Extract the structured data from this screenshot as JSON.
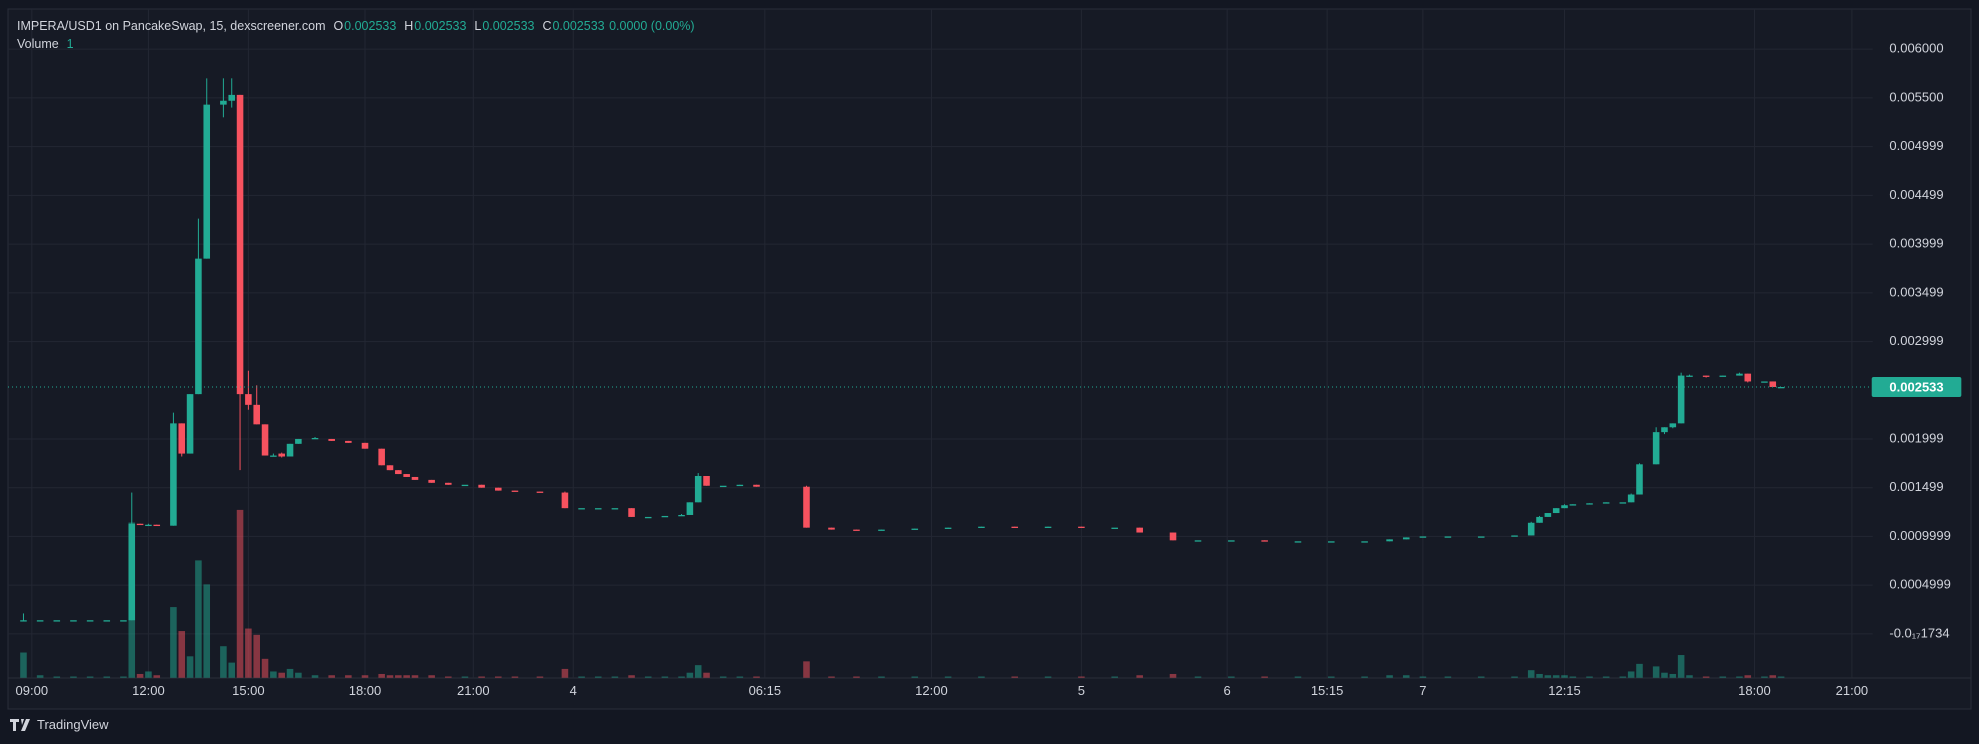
{
  "chart_data": {
    "type": "candlestick",
    "legend": {
      "symbol": "IMPERA/USD1 on PancakeSwap, 15, dexscreener.com",
      "ohlc": [
        {
          "label": "O",
          "value": 0.002533
        },
        {
          "label": "H",
          "value": 0.002533
        },
        {
          "label": "L",
          "value": 0.002533
        },
        {
          "label": "C",
          "value": 0.002533
        }
      ],
      "change": "0.0000 (0.00%)",
      "volume_label": "Volume",
      "volume_value": 1
    },
    "up_color": "#22ab94",
    "down_color": "#f7525f",
    "grid": true,
    "last_price": 0.002533,
    "ylim": [
      -0.00045,
      0.0064
    ],
    "yticks": [
      {
        "value": 0.006,
        "label": "0.006000"
      },
      {
        "value": 0.0055,
        "label": "0.005500"
      },
      {
        "value": 0.004999,
        "label": "0.004999"
      },
      {
        "value": 0.004499,
        "label": "0.004499"
      },
      {
        "value": 0.003999,
        "label": "0.003999"
      },
      {
        "value": 0.003499,
        "label": "0.003499"
      },
      {
        "value": 0.002999,
        "label": "0.002999"
      },
      {
        "value": 0.001999,
        "label": "0.001999"
      },
      {
        "value": 0.001499,
        "label": "0.001499"
      },
      {
        "value": 0.0009999,
        "label": "0.0009999"
      },
      {
        "value": 0.0004999,
        "label": "0.0004999"
      },
      {
        "value": -1.734e-18,
        "label": "-0.0₁₇1734"
      }
    ],
    "xlim": [
      0,
      223
    ],
    "xticks": [
      {
        "value": 2,
        "label": "09:00"
      },
      {
        "value": 16,
        "label": "12:00"
      },
      {
        "value": 28,
        "label": "15:00"
      },
      {
        "value": 42,
        "label": "18:00"
      },
      {
        "value": 55,
        "label": "21:00"
      },
      {
        "value": 67,
        "label": "4"
      },
      {
        "value": 90,
        "label": "06:15"
      },
      {
        "value": 110,
        "label": "12:00"
      },
      {
        "value": 128,
        "label": "5"
      },
      {
        "value": 145.5,
        "label": "6"
      },
      {
        "value": 157.5,
        "label": "15:15"
      },
      {
        "value": 169,
        "label": "7"
      },
      {
        "value": 186,
        "label": "12:15"
      },
      {
        "value": 208.8,
        "label": "18:00"
      },
      {
        "value": 220.5,
        "label": "21:00"
      }
    ],
    "vlim": [
      0,
      140
    ],
    "candles": [
      {
        "x": 1,
        "open": 0.00014,
        "high": 0.00021,
        "low": 0.00013,
        "close": 0.00014,
        "volume": 20
      },
      {
        "x": 3,
        "open": 0.00014,
        "high": 0.00014,
        "low": 0.00014,
        "close": 0.00014,
        "volume": 2
      },
      {
        "x": 5,
        "open": 0.00014,
        "high": 0.00014,
        "low": 0.00014,
        "close": 0.00014,
        "volume": 1
      },
      {
        "x": 7,
        "open": 0.00014,
        "high": 0.00014,
        "low": 0.00014,
        "close": 0.00014,
        "volume": 1
      },
      {
        "x": 9,
        "open": 0.00014,
        "high": 0.00014,
        "low": 0.00014,
        "close": 0.00014,
        "volume": 1
      },
      {
        "x": 11,
        "open": 0.00014,
        "high": 0.00014,
        "low": 0.00014,
        "close": 0.00014,
        "volume": 1
      },
      {
        "x": 13,
        "open": 0.00014,
        "high": 0.00014,
        "low": 0.00014,
        "close": 0.00014,
        "volume": 1
      },
      {
        "x": 14,
        "open": 0.00014,
        "high": 0.00145,
        "low": 0.00014,
        "close": 0.00113,
        "volume": 123
      },
      {
        "x": 15,
        "open": 0.00113,
        "high": 0.00113,
        "low": 0.00112,
        "close": 0.00112,
        "volume": 3
      },
      {
        "x": 16,
        "open": 0.00112,
        "high": 0.00113,
        "low": 0.00111,
        "close": 0.00112,
        "volume": 5
      },
      {
        "x": 17,
        "open": 0.00112,
        "high": 0.00112,
        "low": 0.00111,
        "close": 0.00111,
        "volume": 2
      },
      {
        "x": 19,
        "open": 0.00111,
        "high": 0.00227,
        "low": 0.00111,
        "close": 0.00216,
        "volume": 56
      },
      {
        "x": 20,
        "open": 0.00216,
        "high": 0.00216,
        "low": 0.00182,
        "close": 0.00185,
        "volume": 37
      },
      {
        "x": 21,
        "open": 0.00185,
        "high": 0.00246,
        "low": 0.00185,
        "close": 0.00246,
        "volume": 17
      },
      {
        "x": 22,
        "open": 0.00246,
        "high": 0.00426,
        "low": 0.00246,
        "close": 0.00385,
        "volume": 93
      },
      {
        "x": 23,
        "open": 0.00385,
        "high": 0.0057,
        "low": 0.00385,
        "close": 0.00543,
        "volume": 74
      },
      {
        "x": 25,
        "open": 0.00543,
        "high": 0.0057,
        "low": 0.0053,
        "close": 0.00547,
        "volume": 25
      },
      {
        "x": 26,
        "open": 0.00547,
        "high": 0.0057,
        "low": 0.0054,
        "close": 0.00553,
        "volume": 12
      },
      {
        "x": 27,
        "open": 0.00553,
        "high": 0.00553,
        "low": 0.00168,
        "close": 0.00246,
        "volume": 133
      },
      {
        "x": 28,
        "open": 0.00246,
        "high": 0.0027,
        "low": 0.0023,
        "close": 0.00235,
        "volume": 39
      },
      {
        "x": 29,
        "open": 0.00235,
        "high": 0.00255,
        "low": 0.00215,
        "close": 0.00215,
        "volume": 34
      },
      {
        "x": 30,
        "open": 0.00215,
        "high": 0.00215,
        "low": 0.00183,
        "close": 0.00183,
        "volume": 15
      },
      {
        "x": 31,
        "open": 0.00183,
        "high": 0.00185,
        "low": 0.00182,
        "close": 0.00183,
        "volume": 5
      },
      {
        "x": 32,
        "open": 0.00185,
        "high": 0.00186,
        "low": 0.00181,
        "close": 0.00182,
        "volume": 4
      },
      {
        "x": 33,
        "open": 0.00182,
        "high": 0.00195,
        "low": 0.00182,
        "close": 0.00195,
        "volume": 7
      },
      {
        "x": 34,
        "open": 0.00195,
        "high": 0.002,
        "low": 0.00195,
        "close": 0.002,
        "volume": 4
      },
      {
        "x": 36,
        "open": 0.00201,
        "high": 0.00202,
        "low": 0.002,
        "close": 0.00201,
        "volume": 2
      },
      {
        "x": 38,
        "open": 0.002,
        "high": 0.002,
        "low": 0.00198,
        "close": 0.00198,
        "volume": 2
      },
      {
        "x": 40,
        "open": 0.00198,
        "high": 0.00198,
        "low": 0.00196,
        "close": 0.00196,
        "volume": 2
      },
      {
        "x": 42,
        "open": 0.00196,
        "high": 0.00196,
        "low": 0.0019,
        "close": 0.0019,
        "volume": 2
      },
      {
        "x": 44,
        "open": 0.0019,
        "high": 0.0019,
        "low": 0.00173,
        "close": 0.00173,
        "volume": 3
      },
      {
        "x": 45,
        "open": 0.00173,
        "high": 0.00173,
        "low": 0.00168,
        "close": 0.00168,
        "volume": 2
      },
      {
        "x": 46,
        "open": 0.00168,
        "high": 0.00168,
        "low": 0.00164,
        "close": 0.00164,
        "volume": 2
      },
      {
        "x": 47,
        "open": 0.00164,
        "high": 0.00164,
        "low": 0.00161,
        "close": 0.00161,
        "volume": 2
      },
      {
        "x": 48,
        "open": 0.00161,
        "high": 0.00161,
        "low": 0.00158,
        "close": 0.00158,
        "volume": 2
      },
      {
        "x": 50,
        "open": 0.00158,
        "high": 0.00158,
        "low": 0.00155,
        "close": 0.00155,
        "volume": 2
      },
      {
        "x": 52,
        "open": 0.00155,
        "high": 0.00155,
        "low": 0.00153,
        "close": 0.00153,
        "volume": 1
      },
      {
        "x": 54,
        "open": 0.00153,
        "high": 0.00153,
        "low": 0.00153,
        "close": 0.00153,
        "volume": 1
      },
      {
        "x": 56,
        "open": 0.00153,
        "high": 0.00153,
        "low": 0.0015,
        "close": 0.0015,
        "volume": 1
      },
      {
        "x": 58,
        "open": 0.0015,
        "high": 0.0015,
        "low": 0.00147,
        "close": 0.00147,
        "volume": 1
      },
      {
        "x": 60,
        "open": 0.00147,
        "high": 0.00147,
        "low": 0.00146,
        "close": 0.00146,
        "volume": 1
      },
      {
        "x": 63,
        "open": 0.00146,
        "high": 0.00146,
        "low": 0.00145,
        "close": 0.00145,
        "volume": 1
      },
      {
        "x": 66,
        "open": 0.00145,
        "high": 0.00146,
        "low": 0.00129,
        "close": 0.00129,
        "volume": 7
      },
      {
        "x": 68,
        "open": 0.00129,
        "high": 0.00129,
        "low": 0.00129,
        "close": 0.00129,
        "volume": 1
      },
      {
        "x": 70,
        "open": 0.00129,
        "high": 0.00129,
        "low": 0.00129,
        "close": 0.00129,
        "volume": 1
      },
      {
        "x": 72,
        "open": 0.00129,
        "high": 0.00129,
        "low": 0.00129,
        "close": 0.00129,
        "volume": 1
      },
      {
        "x": 74,
        "open": 0.00129,
        "high": 0.00129,
        "low": 0.0012,
        "close": 0.0012,
        "volume": 2
      },
      {
        "x": 76,
        "open": 0.0012,
        "high": 0.0012,
        "low": 0.0012,
        "close": 0.0012,
        "volume": 1
      },
      {
        "x": 78,
        "open": 0.0012,
        "high": 0.00121,
        "low": 0.0012,
        "close": 0.00121,
        "volume": 1
      },
      {
        "x": 80,
        "open": 0.00121,
        "high": 0.00123,
        "low": 0.00121,
        "close": 0.00122,
        "volume": 1
      },
      {
        "x": 81,
        "open": 0.00122,
        "high": 0.00135,
        "low": 0.00122,
        "close": 0.00135,
        "volume": 4
      },
      {
        "x": 82,
        "open": 0.00135,
        "high": 0.00165,
        "low": 0.00135,
        "close": 0.00162,
        "volume": 10
      },
      {
        "x": 83,
        "open": 0.00162,
        "high": 0.00162,
        "low": 0.00152,
        "close": 0.00152,
        "volume": 4
      },
      {
        "x": 85,
        "open": 0.00152,
        "high": 0.00152,
        "low": 0.00152,
        "close": 0.00152,
        "volume": 1
      },
      {
        "x": 87,
        "open": 0.00152,
        "high": 0.00153,
        "low": 0.00152,
        "close": 0.00153,
        "volume": 1
      },
      {
        "x": 89,
        "open": 0.00153,
        "high": 0.00153,
        "low": 0.00151,
        "close": 0.00151,
        "volume": 1
      },
      {
        "x": 95,
        "open": 0.00151,
        "high": 0.00152,
        "low": 0.00109,
        "close": 0.00109,
        "volume": 13
      },
      {
        "x": 98,
        "open": 0.00109,
        "high": 0.00109,
        "low": 0.00107,
        "close": 0.00107,
        "volume": 1
      },
      {
        "x": 101,
        "open": 0.00107,
        "high": 0.00107,
        "low": 0.00106,
        "close": 0.00106,
        "volume": 1
      },
      {
        "x": 104,
        "open": 0.00106,
        "high": 0.00107,
        "low": 0.00106,
        "close": 0.00107,
        "volume": 1
      },
      {
        "x": 108,
        "open": 0.00107,
        "high": 0.00108,
        "low": 0.00107,
        "close": 0.00108,
        "volume": 1
      },
      {
        "x": 112,
        "open": 0.00108,
        "high": 0.00109,
        "low": 0.00108,
        "close": 0.00109,
        "volume": 1
      },
      {
        "x": 116,
        "open": 0.00109,
        "high": 0.0011,
        "low": 0.00109,
        "close": 0.0011,
        "volume": 1
      },
      {
        "x": 120,
        "open": 0.0011,
        "high": 0.0011,
        "low": 0.00109,
        "close": 0.00109,
        "volume": 1
      },
      {
        "x": 124,
        "open": 0.00109,
        "high": 0.0011,
        "low": 0.00109,
        "close": 0.0011,
        "volume": 1
      },
      {
        "x": 128,
        "open": 0.0011,
        "high": 0.0011,
        "low": 0.00109,
        "close": 0.00109,
        "volume": 1
      },
      {
        "x": 132,
        "open": 0.00109,
        "high": 0.00109,
        "low": 0.00109,
        "close": 0.00109,
        "volume": 1
      },
      {
        "x": 135,
        "open": 0.00109,
        "high": 0.00109,
        "low": 0.00104,
        "close": 0.00104,
        "volume": 2
      },
      {
        "x": 139,
        "open": 0.00104,
        "high": 0.00104,
        "low": 0.00096,
        "close": 0.00096,
        "volume": 3
      },
      {
        "x": 142,
        "open": 0.00096,
        "high": 0.00096,
        "low": 0.00096,
        "close": 0.00096,
        "volume": 1
      },
      {
        "x": 146,
        "open": 0.00096,
        "high": 0.00096,
        "low": 0.00096,
        "close": 0.00096,
        "volume": 1
      },
      {
        "x": 150,
        "open": 0.00096,
        "high": 0.00096,
        "low": 0.00095,
        "close": 0.00095,
        "volume": 1
      },
      {
        "x": 154,
        "open": 0.00095,
        "high": 0.00095,
        "low": 0.00095,
        "close": 0.00095,
        "volume": 1
      },
      {
        "x": 158,
        "open": 0.00095,
        "high": 0.00095,
        "low": 0.00095,
        "close": 0.00095,
        "volume": 1
      },
      {
        "x": 162,
        "open": 0.00095,
        "high": 0.00095,
        "low": 0.00095,
        "close": 0.00095,
        "volume": 1
      },
      {
        "x": 165,
        "open": 0.00095,
        "high": 0.00097,
        "low": 0.00095,
        "close": 0.00097,
        "volume": 2
      },
      {
        "x": 167,
        "open": 0.00097,
        "high": 0.00099,
        "low": 0.00097,
        "close": 0.00099,
        "volume": 2
      },
      {
        "x": 169,
        "open": 0.00099,
        "high": 0.001,
        "low": 0.00099,
        "close": 0.001,
        "volume": 1
      },
      {
        "x": 172,
        "open": 0.001,
        "high": 0.001,
        "low": 0.001,
        "close": 0.001,
        "volume": 1
      },
      {
        "x": 176,
        "open": 0.001,
        "high": 0.001,
        "low": 0.001,
        "close": 0.001,
        "volume": 1
      },
      {
        "x": 180,
        "open": 0.001,
        "high": 0.00101,
        "low": 0.001,
        "close": 0.00101,
        "volume": 1
      },
      {
        "x": 182,
        "open": 0.00101,
        "high": 0.00115,
        "low": 0.00101,
        "close": 0.00114,
        "volume": 6
      },
      {
        "x": 183,
        "open": 0.00114,
        "high": 0.00121,
        "low": 0.00114,
        "close": 0.0012,
        "volume": 3
      },
      {
        "x": 184,
        "open": 0.0012,
        "high": 0.00124,
        "low": 0.0012,
        "close": 0.00124,
        "volume": 2
      },
      {
        "x": 185,
        "open": 0.00124,
        "high": 0.00129,
        "low": 0.00124,
        "close": 0.00129,
        "volume": 2
      },
      {
        "x": 186,
        "open": 0.00129,
        "high": 0.00133,
        "low": 0.00129,
        "close": 0.00132,
        "volume": 2
      },
      {
        "x": 187,
        "open": 0.00132,
        "high": 0.00133,
        "low": 0.00132,
        "close": 0.00133,
        "volume": 1
      },
      {
        "x": 189,
        "open": 0.00133,
        "high": 0.00134,
        "low": 0.00133,
        "close": 0.00134,
        "volume": 1
      },
      {
        "x": 191,
        "open": 0.00134,
        "high": 0.00135,
        "low": 0.00134,
        "close": 0.00135,
        "volume": 1
      },
      {
        "x": 193,
        "open": 0.00135,
        "high": 0.00135,
        "low": 0.00135,
        "close": 0.00135,
        "volume": 1
      },
      {
        "x": 194,
        "open": 0.00135,
        "high": 0.00144,
        "low": 0.00135,
        "close": 0.00143,
        "volume": 5
      },
      {
        "x": 195,
        "open": 0.00143,
        "high": 0.00175,
        "low": 0.00143,
        "close": 0.00174,
        "volume": 11
      },
      {
        "x": 197,
        "open": 0.00174,
        "high": 0.00212,
        "low": 0.00174,
        "close": 0.00207,
        "volume": 9
      },
      {
        "x": 198,
        "open": 0.00207,
        "high": 0.00212,
        "low": 0.00205,
        "close": 0.00212,
        "volume": 4
      },
      {
        "x": 199,
        "open": 0.00212,
        "high": 0.00216,
        "low": 0.00211,
        "close": 0.00216,
        "volume": 3
      },
      {
        "x": 200,
        "open": 0.00216,
        "high": 0.00268,
        "low": 0.00216,
        "close": 0.00265,
        "volume": 18
      },
      {
        "x": 201,
        "open": 0.00265,
        "high": 0.00266,
        "low": 0.00264,
        "close": 0.00265,
        "volume": 2
      },
      {
        "x": 203,
        "open": 0.00265,
        "high": 0.00265,
        "low": 0.00263,
        "close": 0.00264,
        "volume": 1
      },
      {
        "x": 205,
        "open": 0.00264,
        "high": 0.00265,
        "low": 0.00264,
        "close": 0.00265,
        "volume": 1
      },
      {
        "x": 207,
        "open": 0.00265,
        "high": 0.00268,
        "low": 0.00265,
        "close": 0.00267,
        "volume": 1
      },
      {
        "x": 208,
        "open": 0.00267,
        "high": 0.00267,
        "low": 0.00258,
        "close": 0.00259,
        "volume": 2
      },
      {
        "x": 210,
        "open": 0.00259,
        "high": 0.00259,
        "low": 0.00259,
        "close": 0.00259,
        "volume": 1
      },
      {
        "x": 211,
        "open": 0.00259,
        "high": 0.00259,
        "low": 0.002533,
        "close": 0.002533,
        "volume": 2
      },
      {
        "x": 212,
        "open": 0.002533,
        "high": 0.002533,
        "low": 0.002533,
        "close": 0.002533,
        "volume": 1
      }
    ],
    "footer": "TradingView"
  }
}
